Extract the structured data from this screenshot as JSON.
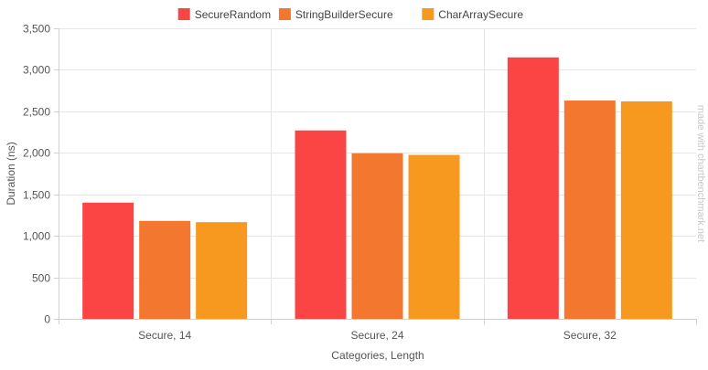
{
  "chart_data": {
    "type": "bar",
    "categories": [
      "Secure, 14",
      "Secure, 24",
      "Secure, 32"
    ],
    "series": [
      {
        "name": "SecureRandom",
        "color": "#fb4444",
        "values": [
          1400,
          2270,
          3150
        ]
      },
      {
        "name": "StringBuilderSecure",
        "color": "#f3772e",
        "values": [
          1180,
          1995,
          2630
        ]
      },
      {
        "name": "CharArraySecure",
        "color": "#f8991f",
        "values": [
          1165,
          1975,
          2620
        ]
      }
    ],
    "xlabel": "Categories, Length",
    "ylabel": "Duration (ns)",
    "ylim": [
      0,
      3500
    ],
    "yticks": [
      "0",
      "500",
      "1,000",
      "1,500",
      "2,000",
      "2,500",
      "3,000",
      "3,500"
    ],
    "grid": true,
    "legend_position": "top-center",
    "watermark": "made with chartbenchmark.net"
  }
}
